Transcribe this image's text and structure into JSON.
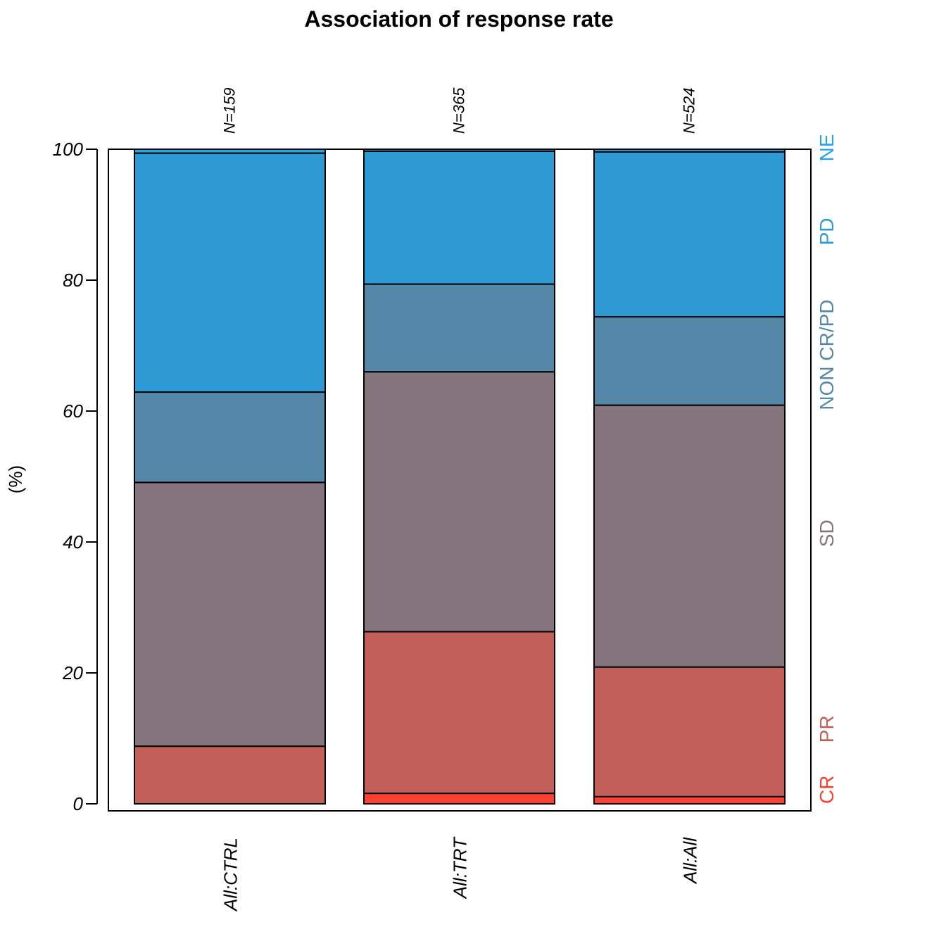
{
  "chart_data": {
    "type": "bar",
    "stacked": true,
    "title": "Association of response rate",
    "xlabel": "",
    "ylabel": "(%)",
    "ylim": [
      0,
      100
    ],
    "yticks": [
      "0",
      "20",
      "40",
      "60",
      "80",
      "100"
    ],
    "grid": false,
    "categories": [
      "All:CTRL",
      "All:TRT",
      "All:All"
    ],
    "counts": [
      "N=159",
      "N=365",
      "N=524"
    ],
    "series": [
      {
        "name": "CR",
        "color": "#fc4130",
        "values": [
          0.0,
          1.6,
          1.1
        ]
      },
      {
        "name": "PR",
        "color": "#c25f59",
        "values": [
          8.8,
          24.7,
          19.8
        ]
      },
      {
        "name": "SD",
        "color": "#86747d",
        "values": [
          40.3,
          39.7,
          40.0
        ]
      },
      {
        "name": "NON CR/PD",
        "color": "#5588a8",
        "values": [
          13.8,
          13.4,
          13.5
        ]
      },
      {
        "name": "PD",
        "color": "#2e9ad3",
        "values": [
          36.5,
          20.3,
          25.2
        ]
      },
      {
        "name": "NE",
        "color": "#22a7e8",
        "values": [
          0.6,
          0.3,
          0.4
        ]
      }
    ],
    "legend_position": "right"
  }
}
